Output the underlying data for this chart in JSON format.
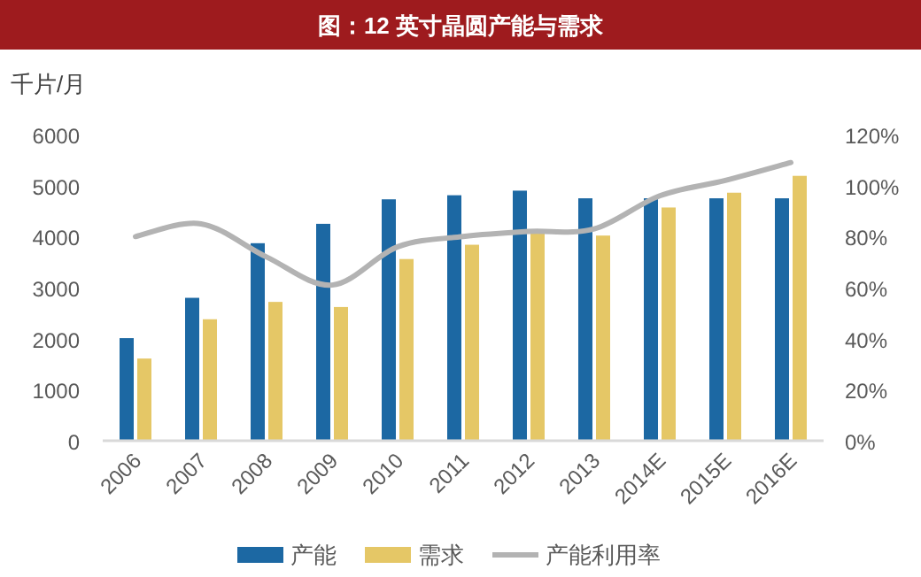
{
  "chart_data": {
    "type": "bar",
    "title": "图：12 英寸晶圆产能与需求",
    "ylabel": "千片/月",
    "categories": [
      "2006",
      "2007",
      "2008",
      "2009",
      "2010",
      "2011",
      "2012",
      "2013",
      "2014E",
      "2015E",
      "2016E"
    ],
    "series": [
      {
        "name": "产能",
        "color": "#1c68a3",
        "values": [
          2010,
          2800,
          3870,
          4250,
          4730,
          4810,
          4900,
          4750,
          4750,
          4750,
          4750
        ]
      },
      {
        "name": "需求",
        "color": "#e5c766",
        "values": [
          1610,
          2380,
          2720,
          2620,
          3560,
          3840,
          4070,
          4020,
          4570,
          4860,
          5190
        ]
      },
      {
        "name": "产能利用率",
        "type": "line",
        "axis": "y2",
        "color": "#b3b3b3",
        "marker": "none",
        "line_style": "solid",
        "values": [
          80,
          85,
          72,
          61,
          76,
          80,
          82,
          83,
          96,
          102,
          109
        ]
      }
    ],
    "ylim": [
      0,
      6000
    ],
    "yticks": [
      0,
      1000,
      2000,
      3000,
      4000,
      5000,
      6000
    ],
    "y2lim": [
      0,
      120
    ],
    "y2ticks": [
      {
        "value": 0,
        "label": "0%"
      },
      {
        "value": 20,
        "label": "20%"
      },
      {
        "value": 40,
        "label": "40%"
      },
      {
        "value": 60,
        "label": "60%"
      },
      {
        "value": 80,
        "label": "80%"
      },
      {
        "value": 100,
        "label": "100%"
      },
      {
        "value": 120,
        "label": "120%"
      }
    ],
    "grid": false,
    "legend": "bottom"
  }
}
